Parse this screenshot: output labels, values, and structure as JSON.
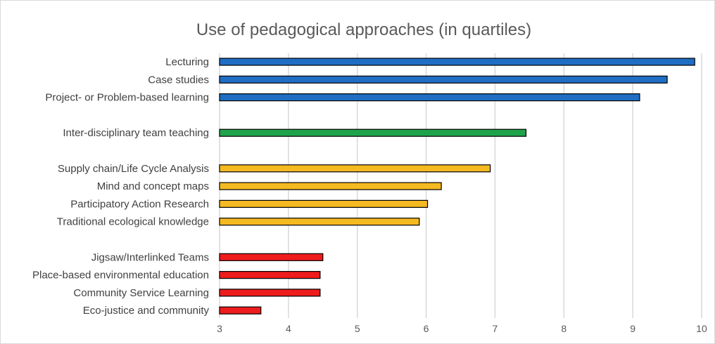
{
  "chart_data": {
    "type": "bar",
    "orientation": "horizontal",
    "title": "Use of pedagogical approaches (in quartiles)",
    "xlabel": "",
    "ylabel": "",
    "xlim": [
      3,
      10
    ],
    "ticks": [
      "3",
      "4",
      "5",
      "6",
      "7",
      "8",
      "9",
      "10"
    ],
    "grid": true,
    "legend": "none",
    "groups": [
      {
        "color": "#1f6ec3",
        "items": [
          {
            "label": "Lecturing",
            "value": 9.9
          },
          {
            "label": "Case studies",
            "value": 9.5
          },
          {
            "label": "Project- or Problem-based learning",
            "value": 9.1
          }
        ]
      },
      {
        "color": "#1fa34a",
        "items": [
          {
            "label": "Inter-disciplinary team teaching",
            "value": 7.45
          }
        ]
      },
      {
        "color": "#f5b921",
        "items": [
          {
            "label": "Supply chain/Life Cycle Analysis",
            "value": 6.93
          },
          {
            "label": "Mind and concept maps",
            "value": 6.22
          },
          {
            "label": "Participatory Action Research",
            "value": 6.02
          },
          {
            "label": "Traditional ecological knowledge",
            "value": 5.9
          }
        ]
      },
      {
        "color": "#ee1c1c",
        "items": [
          {
            "label": "Jigsaw/Interlinked Teams",
            "value": 4.5
          },
          {
            "label": "Place-based environmental education",
            "value": 4.46
          },
          {
            "label": "Community Service Learning",
            "value": 4.46
          },
          {
            "label": "Eco-justice and community",
            "value": 3.6
          }
        ]
      }
    ]
  }
}
